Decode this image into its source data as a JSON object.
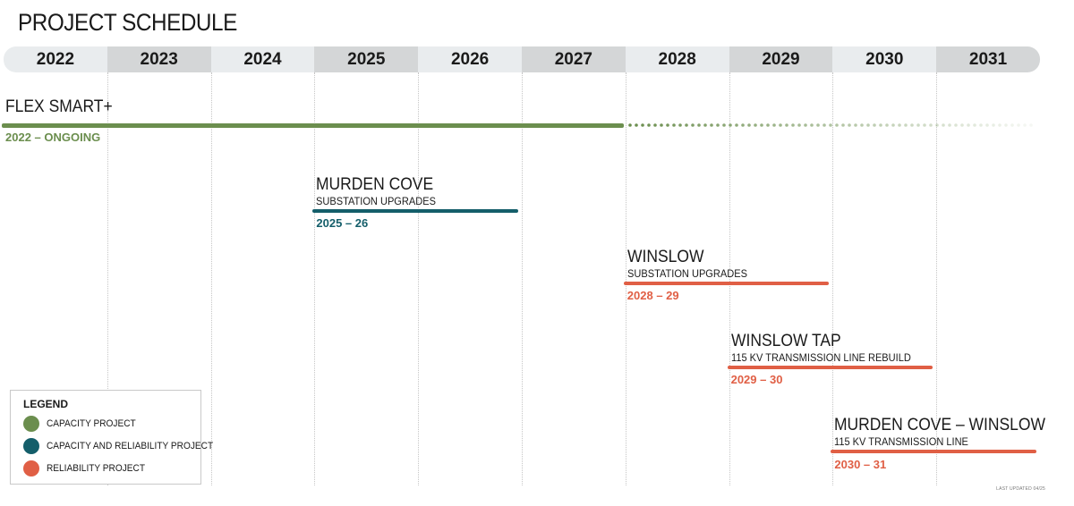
{
  "title": "PROJECT SCHEDULE",
  "footnote": "LAST UPDATED 04/25",
  "colors": {
    "capacity": "#6b8e4e",
    "capacity_reliability": "#145e6a",
    "reliability": "#e05f45",
    "header_light": "#e9ecee",
    "header_dark": "#d4d6d7"
  },
  "chart_data": {
    "type": "gantt",
    "years": [
      "2022",
      "2023",
      "2024",
      "2025",
      "2026",
      "2027",
      "2028",
      "2029",
      "2030",
      "2031"
    ],
    "projects": [
      {
        "name": "FLEX SMART+",
        "subtitle": "",
        "dates": "2022 – ONGOING",
        "start": 2022,
        "end": 2028,
        "ongoing": true,
        "category": "capacity"
      },
      {
        "name": "MURDEN COVE",
        "subtitle": "SUBSTATION UPGRADES",
        "dates": "2025 – 26",
        "start": 2025,
        "end": 2027,
        "ongoing": false,
        "category": "capacity_reliability"
      },
      {
        "name": "WINSLOW",
        "subtitle": "SUBSTATION UPGRADES",
        "dates": "2028 – 29",
        "start": 2028,
        "end": 2030,
        "ongoing": false,
        "category": "reliability"
      },
      {
        "name": "WINSLOW TAP",
        "subtitle": "115 KV TRANSMISSION LINE REBUILD",
        "dates": "2029 – 30",
        "start": 2029,
        "end": 2031,
        "ongoing": false,
        "category": "reliability"
      },
      {
        "name": "MURDEN COVE – WINSLOW",
        "subtitle": "115 KV TRANSMISSION LINE",
        "dates": "2030 – 31",
        "start": 2030,
        "end": 2032,
        "ongoing": false,
        "category": "reliability"
      }
    ],
    "legend": {
      "title": "LEGEND",
      "position": "bottom-left",
      "items": [
        {
          "label": "CAPACITY PROJECT",
          "category": "capacity"
        },
        {
          "label": "CAPACITY AND RELIABILITY PROJECT",
          "category": "capacity_reliability"
        },
        {
          "label": "RELIABILITY PROJECT",
          "category": "reliability"
        }
      ]
    }
  }
}
